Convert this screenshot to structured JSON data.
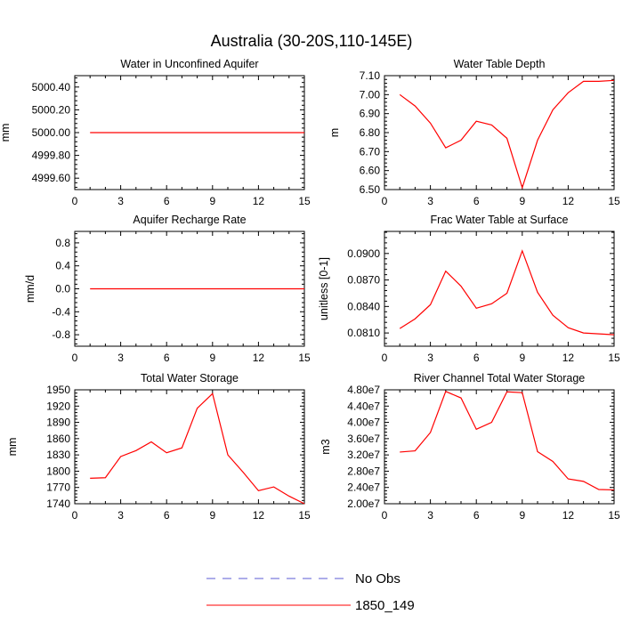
{
  "page_title": "Australia (30-20S,110-145E)",
  "legend": [
    {
      "label": "No Obs",
      "color": "#5b5bd6",
      "dash": true
    },
    {
      "label": "1850_149",
      "color": "#ff0000",
      "dash": false
    }
  ],
  "chart_data": [
    {
      "type": "line",
      "title": "Water in Unconfined Aquifer",
      "ylabel": "mm",
      "xlim": [
        0,
        15
      ],
      "ylim": [
        4999.5,
        5000.5
      ],
      "xticks": [
        0,
        3,
        6,
        9,
        12,
        15
      ],
      "yticks": [
        4999.6,
        4999.8,
        5000.0,
        5000.2,
        5000.4
      ],
      "ytick_labels": [
        "4999.60",
        "4999.80",
        "5000.00",
        "5000.20",
        "5000.40"
      ],
      "series": [
        {
          "name": "1850_149",
          "color": "#ff0000",
          "x": [
            1,
            2,
            3,
            4,
            5,
            6,
            7,
            8,
            9,
            10,
            11,
            12,
            13,
            14,
            15
          ],
          "y": [
            5000,
            5000,
            5000,
            5000,
            5000,
            5000,
            5000,
            5000,
            5000,
            5000,
            5000,
            5000,
            5000,
            5000,
            5000
          ]
        }
      ]
    },
    {
      "type": "line",
      "title": "Water Table Depth",
      "ylabel": "m",
      "xlim": [
        0,
        15
      ],
      "ylim": [
        6.5,
        7.1
      ],
      "xticks": [
        0,
        3,
        6,
        9,
        12,
        15
      ],
      "yticks": [
        6.5,
        6.6,
        6.7,
        6.8,
        6.9,
        7.0,
        7.1
      ],
      "ytick_labels": [
        "6.50",
        "6.60",
        "6.70",
        "6.80",
        "6.90",
        "7.00",
        "7.10"
      ],
      "series": [
        {
          "name": "1850_149",
          "color": "#ff0000",
          "x": [
            1,
            2,
            3,
            4,
            5,
            6,
            7,
            8,
            9,
            10,
            11,
            12,
            13,
            14,
            15
          ],
          "y": [
            7.0,
            6.94,
            6.85,
            6.72,
            6.76,
            6.86,
            6.84,
            6.77,
            6.51,
            6.76,
            6.92,
            7.01,
            7.07,
            7.07,
            7.075
          ]
        }
      ]
    },
    {
      "type": "line",
      "title": "Aquifer Recharge Rate",
      "ylabel": "mm/d",
      "xlim": [
        0,
        15
      ],
      "ylim": [
        -1.0,
        1.0
      ],
      "xticks": [
        0,
        3,
        6,
        9,
        12,
        15
      ],
      "yticks": [
        -0.8,
        -0.4,
        0.0,
        0.4,
        0.8
      ],
      "ytick_labels": [
        "-0.8",
        "-0.4",
        "0.0",
        "0.4",
        "0.8"
      ],
      "series": [
        {
          "name": "1850_149",
          "color": "#ff0000",
          "x": [
            1,
            2,
            3,
            4,
            5,
            6,
            7,
            8,
            9,
            10,
            11,
            12,
            13,
            14,
            15
          ],
          "y": [
            0,
            0,
            0,
            0,
            0,
            0,
            0,
            0,
            0,
            0,
            0,
            0,
            0,
            0,
            0
          ]
        }
      ]
    },
    {
      "type": "line",
      "title": "Frac Water Table at Surface",
      "ylabel": "unitless [0-1]",
      "xlim": [
        0,
        15
      ],
      "ylim": [
        0.0795,
        0.0925
      ],
      "xticks": [
        0,
        3,
        6,
        9,
        12,
        15
      ],
      "yticks": [
        0.081,
        0.084,
        0.087,
        0.09
      ],
      "ytick_labels": [
        "0.0810",
        "0.0840",
        "0.0870",
        "0.0900"
      ],
      "series": [
        {
          "name": "1850_149",
          "color": "#ff0000",
          "x": [
            1,
            2,
            3,
            4,
            5,
            6,
            7,
            8,
            9,
            10,
            11,
            12,
            13,
            14,
            15
          ],
          "y": [
            0.0815,
            0.0826,
            0.0842,
            0.088,
            0.0863,
            0.0838,
            0.0843,
            0.0855,
            0.0903,
            0.0856,
            0.083,
            0.0816,
            0.081,
            0.0809,
            0.0808
          ]
        }
      ]
    },
    {
      "type": "line",
      "title": "Total Water Storage",
      "ylabel": "mm",
      "xlim": [
        0,
        15
      ],
      "ylim": [
        1740,
        1950
      ],
      "xticks": [
        0,
        3,
        6,
        9,
        12,
        15
      ],
      "yticks": [
        1740,
        1770,
        1800,
        1830,
        1860,
        1890,
        1920,
        1950
      ],
      "ytick_labels": [
        "1740",
        "1770",
        "1800",
        "1830",
        "1860",
        "1890",
        "1920",
        "1950"
      ],
      "series": [
        {
          "name": "1850_149",
          "color": "#ff0000",
          "x": [
            1,
            2,
            3,
            4,
            5,
            6,
            7,
            8,
            9,
            10,
            11,
            12,
            13,
            14,
            15
          ],
          "y": [
            1787,
            1788,
            1827,
            1838,
            1854,
            1834,
            1843,
            1916,
            1943,
            1830,
            1798,
            1764,
            1771,
            1754,
            1740
          ]
        }
      ]
    },
    {
      "type": "line",
      "title": "River Channel Total Water Storage",
      "ylabel": "m3",
      "xlim": [
        0,
        15
      ],
      "ylim": [
        20000000,
        48000000
      ],
      "xticks": [
        0,
        3,
        6,
        9,
        12,
        15
      ],
      "yticks": [
        20000000,
        24000000,
        28000000,
        32000000,
        36000000,
        40000000,
        44000000,
        48000000
      ],
      "ytick_labels": [
        "2.00e7",
        "2.40e7",
        "2.80e7",
        "3.20e7",
        "3.60e7",
        "4.00e7",
        "4.40e7",
        "4.80e7"
      ],
      "series": [
        {
          "name": "1850_149",
          "color": "#ff0000",
          "x": [
            1,
            2,
            3,
            4,
            5,
            6,
            7,
            8,
            9,
            10,
            11,
            12,
            13,
            14,
            15
          ],
          "y": [
            32700000,
            33000000,
            37500000,
            47600000,
            46000000,
            38300000,
            40000000,
            47500000,
            47300000,
            32800000,
            30400000,
            26100000,
            25500000,
            23500000,
            23400000
          ]
        }
      ]
    }
  ]
}
